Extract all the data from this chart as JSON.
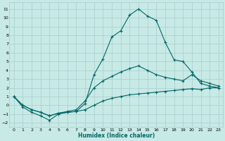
{
  "xlabel": "Humidex (Indice chaleur)",
  "background_color": "#c8eae6",
  "grid_color": "#a8cccc",
  "line_color": "#006666",
  "xlim": [
    -0.5,
    23.5
  ],
  "ylim": [
    -2.5,
    11.8
  ],
  "xticks": [
    0,
    1,
    2,
    3,
    4,
    5,
    6,
    7,
    8,
    9,
    10,
    11,
    12,
    13,
    14,
    15,
    16,
    17,
    18,
    19,
    20,
    21,
    22,
    23
  ],
  "yticks": [
    -2,
    -1,
    0,
    1,
    2,
    3,
    4,
    5,
    6,
    7,
    8,
    9,
    10,
    11
  ],
  "line1_x": [
    0,
    1,
    2,
    3,
    4,
    5,
    6,
    7,
    8,
    9,
    10,
    11,
    12,
    13,
    14,
    15,
    16,
    17,
    18,
    19,
    20,
    21,
    22,
    23
  ],
  "line1_y": [
    1.0,
    -0.2,
    -0.8,
    -1.2,
    -1.7,
    -1.0,
    -0.8,
    -0.7,
    0.2,
    3.5,
    5.3,
    7.8,
    8.5,
    10.3,
    11.0,
    10.2,
    9.7,
    7.2,
    5.2,
    5.0,
    3.8,
    2.5,
    2.2,
    2.0
  ],
  "line2_x": [
    0,
    1,
    2,
    3,
    4,
    5,
    6,
    7,
    8,
    9,
    10,
    11,
    12,
    13,
    14,
    15,
    16,
    17,
    18,
    19,
    20,
    21,
    22,
    23
  ],
  "line2_y": [
    1.0,
    0.0,
    -0.5,
    -0.8,
    -1.2,
    -0.9,
    -0.7,
    -0.5,
    0.5,
    2.0,
    2.8,
    3.3,
    3.8,
    4.2,
    4.5,
    4.0,
    3.5,
    3.2,
    3.0,
    2.8,
    3.5,
    2.8,
    2.5,
    2.2
  ],
  "line3_x": [
    0,
    1,
    2,
    3,
    4,
    5,
    6,
    7,
    8,
    9,
    10,
    11,
    12,
    13,
    14,
    15,
    16,
    17,
    18,
    19,
    20,
    21,
    22,
    23
  ],
  "line3_y": [
    1.0,
    0.0,
    -0.5,
    -0.8,
    -1.2,
    -0.9,
    -0.8,
    -0.7,
    -0.5,
    0.0,
    0.5,
    0.8,
    1.0,
    1.2,
    1.3,
    1.4,
    1.5,
    1.6,
    1.7,
    1.8,
    1.9,
    1.8,
    2.0,
    2.0
  ]
}
